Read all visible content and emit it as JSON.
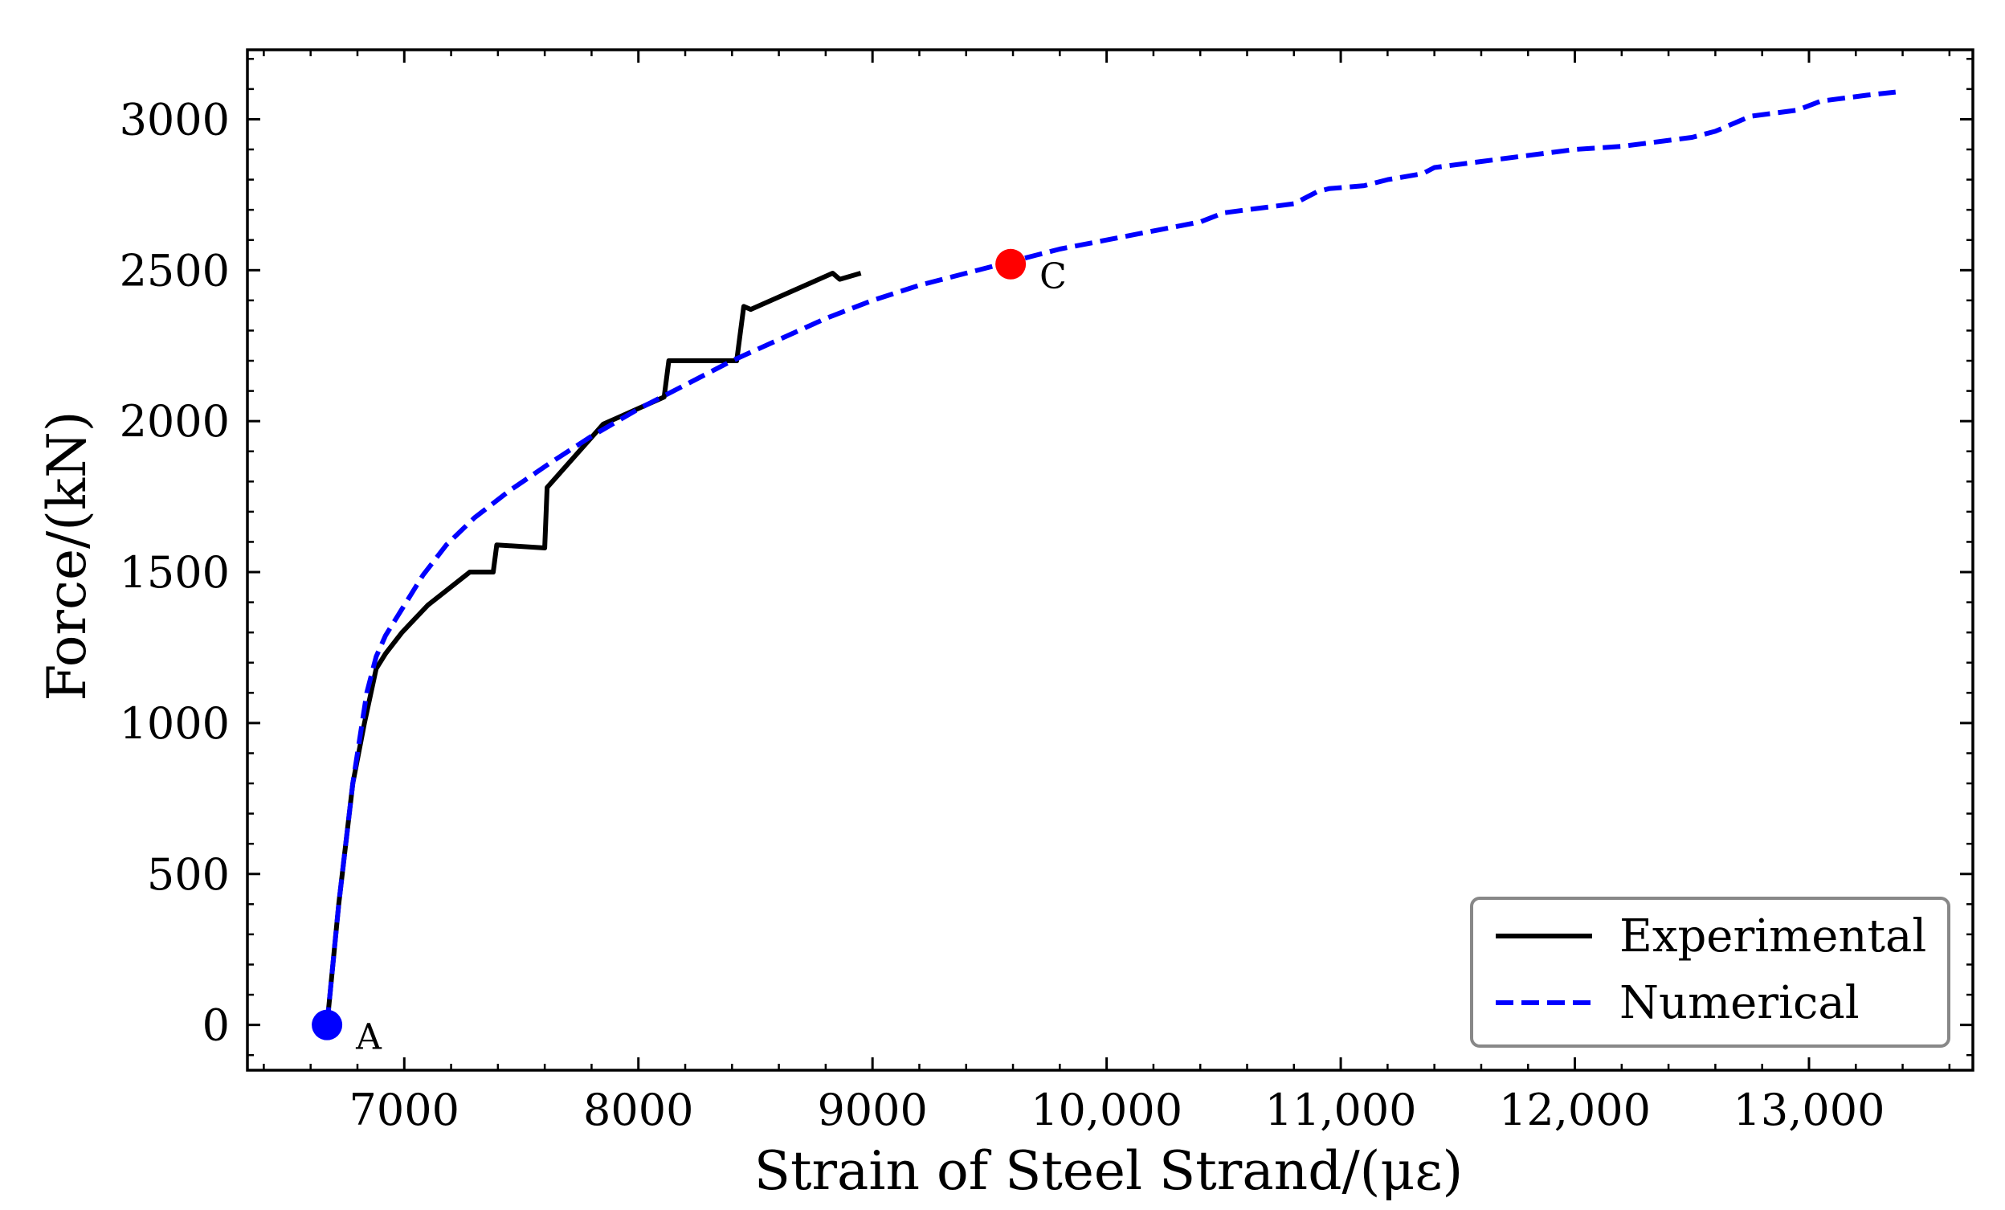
{
  "chart_data": {
    "type": "line",
    "title": "",
    "xlabel": "Strain of Steel Strand/(με)",
    "ylabel": "Force/(kN)",
    "xlim": [
      6330,
      13700
    ],
    "ylim": [
      -150,
      3230
    ],
    "x_ticks": [
      7000,
      8000,
      9000,
      10000,
      11000,
      12000,
      13000
    ],
    "x_tick_labels": [
      "7000",
      "8000",
      "9000",
      "10,000",
      "11,000",
      "12,000",
      "13,000"
    ],
    "y_ticks": [
      0,
      500,
      1000,
      1500,
      2000,
      2500,
      3000
    ],
    "y_tick_labels": [
      "0",
      "500",
      "1000",
      "1500",
      "2000",
      "2500",
      "3000"
    ],
    "grid": false,
    "legend_position": "bottom-right",
    "series": [
      {
        "name": "Experimental",
        "color": "#000000",
        "style": "solid",
        "x": [
          6670,
          6720,
          6780,
          6830,
          6880,
          6920,
          6990,
          7100,
          7280,
          7380,
          7395,
          7600,
          7610,
          7850,
          8110,
          8130,
          8420,
          8450,
          8480,
          8830,
          8860,
          8950
        ],
        "y": [
          0,
          400,
          800,
          1000,
          1180,
          1230,
          1300,
          1390,
          1500,
          1500,
          1590,
          1580,
          1780,
          1990,
          2080,
          2200,
          2200,
          2380,
          2370,
          2490,
          2470,
          2490
        ]
      },
      {
        "name": "Numerical",
        "color": "#0000ff",
        "style": "dashed",
        "x": [
          6670,
          6720,
          6780,
          6840,
          6880,
          6920,
          7000,
          7080,
          7180,
          7300,
          7450,
          7620,
          7800,
          8000,
          8200,
          8400,
          8600,
          8800,
          9000,
          9200,
          9400,
          9600,
          9700,
          9800,
          10000,
          10200,
          10400,
          10500,
          10600,
          10800,
          10900,
          10950,
          11100,
          11200,
          11350,
          11400,
          11600,
          11800,
          12000,
          12200,
          12500,
          12600,
          12750,
          12950,
          13050,
          13250,
          13370
        ],
        "y": [
          0,
          400,
          800,
          1100,
          1220,
          1290,
          1390,
          1490,
          1590,
          1680,
          1770,
          1860,
          1950,
          2040,
          2120,
          2200,
          2270,
          2340,
          2400,
          2450,
          2490,
          2530,
          2550,
          2570,
          2600,
          2630,
          2660,
          2690,
          2700,
          2720,
          2760,
          2770,
          2780,
          2800,
          2820,
          2840,
          2860,
          2880,
          2900,
          2910,
          2940,
          2960,
          3010,
          3030,
          3060,
          3080,
          3090
        ]
      }
    ],
    "annotations": [
      {
        "label": "A",
        "x": 6670,
        "y": 0,
        "color": "#0000ff"
      },
      {
        "label": "C",
        "x": 9590,
        "y": 2520,
        "color": "#ff0000"
      }
    ]
  }
}
